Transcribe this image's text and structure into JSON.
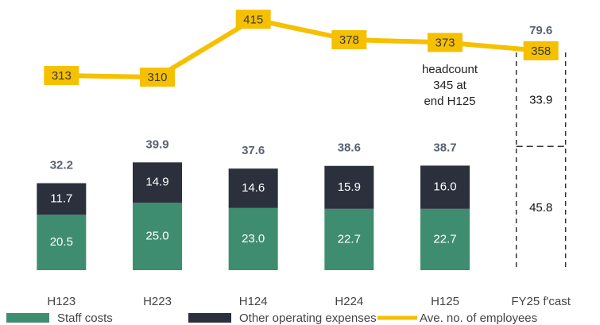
{
  "chart_data": {
    "type": "bar",
    "categories": [
      "H123",
      "H223",
      "H124",
      "H224",
      "H125",
      "FY25 f'cast"
    ],
    "series": [
      {
        "name": "Staff costs",
        "color": "#3f8d70",
        "values": [
          20.5,
          25.0,
          23.0,
          22.7,
          22.7,
          45.8
        ],
        "value_labels": [
          "20.5",
          "25.0",
          "23.0",
          "22.7",
          "22.7",
          "45.8"
        ]
      },
      {
        "name": "Other operating expenses",
        "color": "#2b303c",
        "values": [
          11.7,
          14.9,
          14.6,
          15.9,
          16.0,
          33.9
        ],
        "value_labels": [
          "11.7",
          "14.9",
          "14.6",
          "15.9",
          "16.0",
          "33.9"
        ]
      },
      {
        "name": "Ave. no. of employees",
        "color": "#f5c000",
        "type": "line",
        "axis": "y2",
        "values": [
          313,
          310,
          415,
          378,
          373,
          358
        ]
      }
    ],
    "totals": [
      32.2,
      39.9,
      37.6,
      38.6,
      38.7,
      79.6
    ],
    "dashed": [
      false,
      false,
      false,
      false,
      false,
      true
    ],
    "annotation": [
      "headcount",
      "345 at",
      "end H125"
    ],
    "ylim": [
      0,
      100
    ],
    "y2lim": [
      -40,
      450
    ],
    "legend": "bottom"
  }
}
